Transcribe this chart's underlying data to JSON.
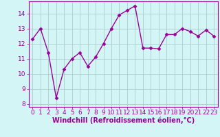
{
  "x": [
    0,
    1,
    2,
    3,
    4,
    5,
    6,
    7,
    8,
    9,
    10,
    11,
    12,
    13,
    14,
    15,
    16,
    17,
    18,
    19,
    20,
    21,
    22,
    23
  ],
  "y": [
    12.3,
    13.0,
    11.4,
    8.4,
    10.3,
    11.0,
    11.4,
    10.5,
    11.1,
    12.0,
    13.0,
    13.9,
    14.2,
    14.5,
    11.7,
    11.7,
    11.65,
    12.6,
    12.6,
    13.0,
    12.8,
    12.5,
    12.9,
    12.5
  ],
  "line_color": "#990099",
  "marker": "D",
  "marker_size": 2.5,
  "line_width": 1.0,
  "bg_color": "#d4f5f5",
  "grid_color": "#aacccc",
  "xlabel": "Windchill (Refroidissement éolien,°C)",
  "ylim": [
    7.8,
    14.8
  ],
  "yticks": [
    8,
    9,
    10,
    11,
    12,
    13,
    14
  ],
  "xticks": [
    0,
    1,
    2,
    3,
    4,
    5,
    6,
    7,
    8,
    9,
    10,
    11,
    12,
    13,
    14,
    15,
    16,
    17,
    18,
    19,
    20,
    21,
    22,
    23
  ],
  "xlabel_fontsize": 7.0,
  "tick_fontsize": 6.5,
  "tick_color": "#990099",
  "xlabel_color": "#990099",
  "spine_color": "#990099"
}
